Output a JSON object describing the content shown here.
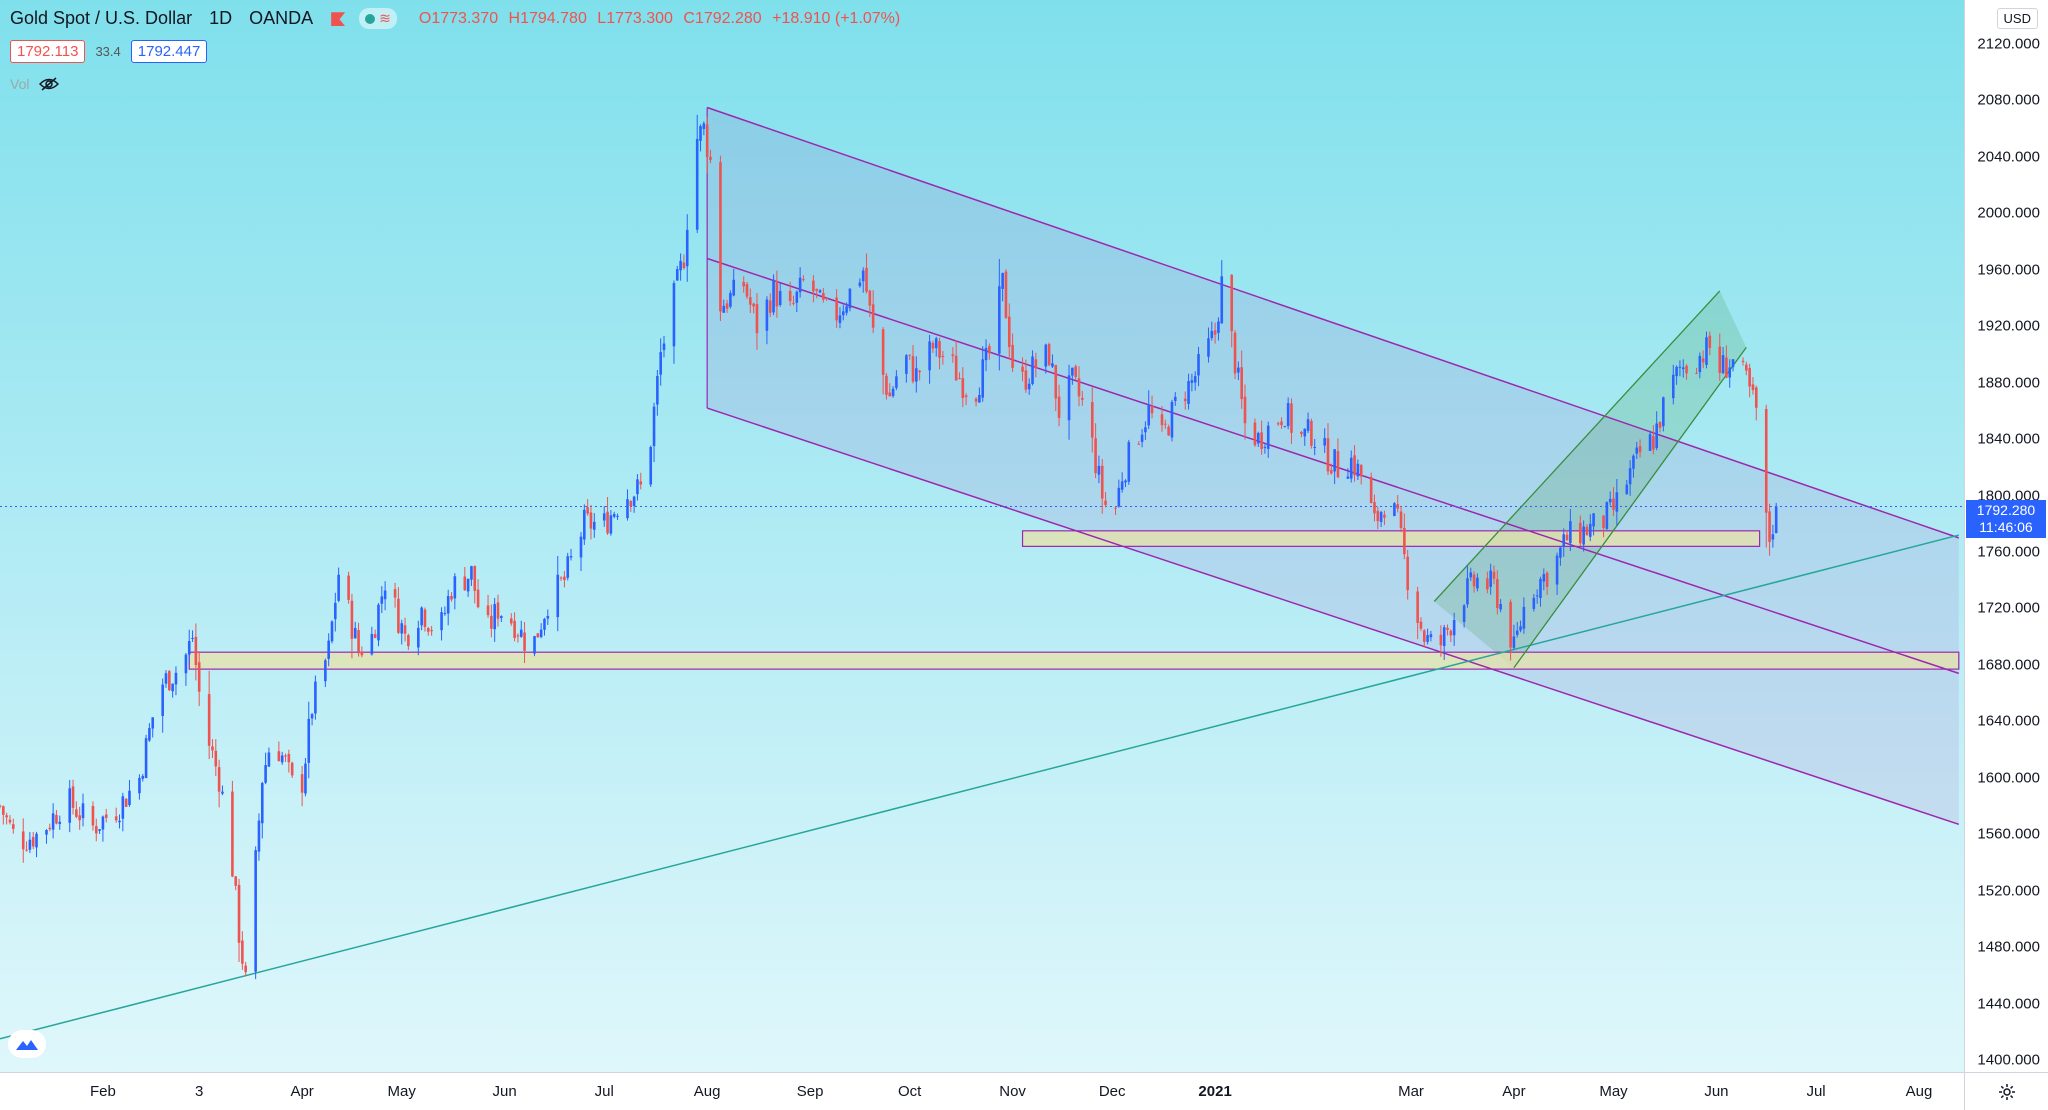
{
  "legend": {
    "title": "Gold Spot / U.S. Dollar",
    "interval": "1D",
    "broker": "OANDA",
    "open": "O1773.370",
    "high": "H1794.780",
    "low": "L1773.300",
    "close": "C1792.280",
    "change": "+18.910 (+1.07%)"
  },
  "bid": "1792.113",
  "spread": "33.4",
  "ask": "1792.447",
  "vol_label": "Vol",
  "currency": "USD",
  "last_price": "1792.280",
  "countdown": "11:46:06",
  "colors": {
    "up": "#2962ff",
    "down": "#ef5350",
    "channel": "#9c27b0",
    "zone_fill": "#e8e2a8",
    "trendline": "#26a69a",
    "green_channel": "#388e3c"
  },
  "chart_data": {
    "type": "candlestick",
    "symbol": "XAUUSD",
    "ylim": [
      1390,
      2130
    ],
    "y_ticks": [
      "2120.000",
      "2080.000",
      "2040.000",
      "2000.000",
      "1960.000",
      "1920.000",
      "1880.000",
      "1840.000",
      "1800.000",
      "1760.000",
      "1720.000",
      "1680.000",
      "1640.000",
      "1600.000",
      "1560.000",
      "1520.000",
      "1480.000",
      "1440.000",
      "1400.000"
    ],
    "x_ticks": [
      {
        "label": "Feb",
        "d": 31
      },
      {
        "label": "3",
        "d": 60,
        "bold": false
      },
      {
        "label": "Apr",
        "d": 91
      },
      {
        "label": "May",
        "d": 121
      },
      {
        "label": "Jun",
        "d": 152
      },
      {
        "label": "Jul",
        "d": 182
      },
      {
        "label": "Aug",
        "d": 213
      },
      {
        "label": "Sep",
        "d": 244
      },
      {
        "label": "Oct",
        "d": 274
      },
      {
        "label": "Nov",
        "d": 305
      },
      {
        "label": "Dec",
        "d": 335
      },
      {
        "label": "2021",
        "d": 366,
        "bold": true
      },
      {
        "label": "Mar",
        "d": 425
      },
      {
        "label": "Apr",
        "d": 456
      },
      {
        "label": "May",
        "d": 486
      },
      {
        "label": "Jun",
        "d": 517
      },
      {
        "label": "Jul",
        "d": 547
      },
      {
        "label": "Aug",
        "d": 578
      }
    ],
    "anchors": [
      [
        0,
        1580
      ],
      [
        5,
        1555
      ],
      [
        12,
        1560
      ],
      [
        20,
        1585
      ],
      [
        28,
        1565
      ],
      [
        36,
        1580
      ],
      [
        42,
        1600
      ],
      [
        48,
        1665
      ],
      [
        55,
        1680
      ],
      [
        58,
        1700
      ],
      [
        61,
        1640
      ],
      [
        66,
        1600
      ],
      [
        69,
        1560
      ],
      [
        72,
        1490
      ],
      [
        74,
        1455
      ],
      [
        76,
        1510
      ],
      [
        79,
        1600
      ],
      [
        82,
        1630
      ],
      [
        86,
        1610
      ],
      [
        90,
        1580
      ],
      [
        94,
        1650
      ],
      [
        99,
        1690
      ],
      [
        102,
        1745
      ],
      [
        108,
        1690
      ],
      [
        112,
        1700
      ],
      [
        116,
        1740
      ],
      [
        122,
        1700
      ],
      [
        127,
        1720
      ],
      [
        132,
        1700
      ],
      [
        136,
        1735
      ],
      [
        142,
        1745
      ],
      [
        146,
        1700
      ],
      [
        150,
        1720
      ],
      [
        155,
        1710
      ],
      [
        160,
        1690
      ],
      [
        165,
        1725
      ],
      [
        170,
        1740
      ],
      [
        176,
        1780
      ],
      [
        182,
        1780
      ],
      [
        188,
        1800
      ],
      [
        193,
        1805
      ],
      [
        196,
        1840
      ],
      [
        199,
        1900
      ],
      [
        203,
        1940
      ],
      [
        206,
        1970
      ],
      [
        209,
        2050
      ],
      [
        212,
        2060
      ],
      [
        215,
        2025
      ],
      [
        217,
        1935
      ],
      [
        220,
        1940
      ],
      [
        224,
        1950
      ],
      [
        228,
        1920
      ],
      [
        233,
        1945
      ],
      [
        238,
        1930
      ],
      [
        243,
        1955
      ],
      [
        247,
        1935
      ],
      [
        251,
        1925
      ],
      [
        255,
        1940
      ],
      [
        260,
        1960
      ],
      [
        264,
        1900
      ],
      [
        268,
        1870
      ],
      [
        272,
        1900
      ],
      [
        276,
        1885
      ],
      [
        281,
        1905
      ],
      [
        286,
        1895
      ],
      [
        290,
        1880
      ],
      [
        293,
        1870
      ],
      [
        298,
        1900
      ],
      [
        302,
        1950
      ],
      [
        306,
        1875
      ],
      [
        311,
        1890
      ],
      [
        316,
        1900
      ],
      [
        319,
        1860
      ],
      [
        323,
        1880
      ],
      [
        327,
        1860
      ],
      [
        332,
        1800
      ],
      [
        335,
        1780
      ],
      [
        338,
        1815
      ],
      [
        342,
        1840
      ],
      [
        346,
        1860
      ],
      [
        350,
        1840
      ],
      [
        355,
        1870
      ],
      [
        359,
        1880
      ],
      [
        362,
        1895
      ],
      [
        366,
        1915
      ],
      [
        368,
        1950
      ],
      [
        371,
        1910
      ],
      [
        375,
        1850
      ],
      [
        379,
        1840
      ],
      [
        383,
        1850
      ],
      [
        387,
        1860
      ],
      [
        391,
        1840
      ],
      [
        395,
        1845
      ],
      [
        399,
        1830
      ],
      [
        403,
        1820
      ],
      [
        407,
        1825
      ],
      [
        411,
        1810
      ],
      [
        414,
        1780
      ],
      [
        418,
        1800
      ],
      [
        421,
        1780
      ],
      [
        425,
        1730
      ],
      [
        429,
        1700
      ],
      [
        433,
        1690
      ],
      [
        437,
        1710
      ],
      [
        441,
        1730
      ],
      [
        445,
        1740
      ],
      [
        450,
        1735
      ],
      [
        454,
        1710
      ],
      [
        456,
        1690
      ],
      [
        460,
        1730
      ],
      [
        464,
        1740
      ],
      [
        468,
        1750
      ],
      [
        472,
        1770
      ],
      [
        477,
        1775
      ],
      [
        482,
        1780
      ],
      [
        486,
        1790
      ],
      [
        490,
        1810
      ],
      [
        494,
        1830
      ],
      [
        498,
        1840
      ],
      [
        502,
        1870
      ],
      [
        506,
        1890
      ],
      [
        510,
        1895
      ],
      [
        515,
        1905
      ],
      [
        518,
        1890
      ],
      [
        522,
        1895
      ],
      [
        526,
        1880
      ],
      [
        529,
        1860
      ],
      [
        531,
        1790
      ],
      [
        533,
        1770
      ],
      [
        534,
        1780
      ],
      [
        535,
        1792
      ]
    ],
    "last_candle": {
      "open": 1773.37,
      "high": 1794.78,
      "low": 1773.3,
      "close": 1792.28
    },
    "x_range_days": [
      0,
      590
    ],
    "drawings": {
      "channel_upper": [
        [
          213,
          2075
        ],
        [
          590,
          1770
        ]
      ],
      "channel_middle": [
        [
          213,
          1968
        ],
        [
          590,
          1674
        ]
      ],
      "channel_lower": [
        [
          213,
          1862
        ],
        [
          590,
          1567
        ]
      ],
      "support_zone_1": {
        "d1": 57,
        "d2": 590,
        "p1": 1677,
        "p2": 1689
      },
      "support_zone_2": {
        "d1": 308,
        "d2": 530,
        "p1": 1764,
        "p2": 1775
      },
      "trendline": [
        [
          0,
          1415
        ],
        [
          590,
          1772
        ]
      ],
      "green_channel_upper": [
        [
          432,
          1725
        ],
        [
          518,
          1945
        ]
      ],
      "green_channel_lower": [
        [
          456,
          1678
        ],
        [
          526,
          1905
        ]
      ]
    }
  }
}
